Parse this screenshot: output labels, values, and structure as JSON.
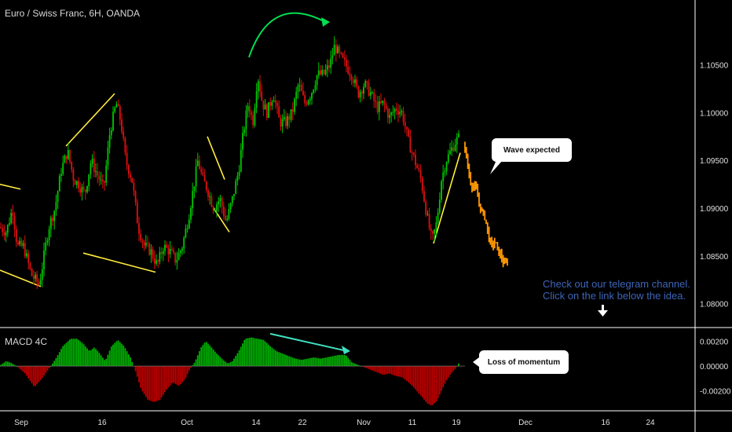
{
  "header": {
    "symbol_title": "Euro / Swiss Franc, 6H, OANDA",
    "indicator_title": "MACD 4C"
  },
  "annotations": {
    "wave_callout": "Wave expected",
    "momentum_callout": "Loss of momentum",
    "promo_line1": "Check out our telegram channel.",
    "promo_line2": "Click on the link below the idea."
  },
  "colors": {
    "background": "#000000",
    "bull": "#00c800",
    "bear": "#e01010",
    "forecast": "#ff9800",
    "trendline": "#ffeb3b",
    "arc": "#00e050",
    "divergence": "#40e0c0",
    "macd_up": "#00b000",
    "macd_down": "#c00000",
    "promo_text": "#3d65b8"
  },
  "chart_data": [
    {
      "type": "candlestick",
      "title": "Euro / Swiss Franc, 6H, OANDA",
      "ylim": [
        1.0775,
        1.1118
      ],
      "y_ticks": [
        "1.10500",
        "1.10000",
        "1.09500",
        "1.09000",
        "1.08500",
        "1.08000"
      ],
      "y_tick_values": [
        1.105,
        1.1,
        1.095,
        1.09,
        1.085,
        1.08
      ],
      "x_ticks": [
        "Sep",
        "16",
        "Oct",
        "14",
        "22",
        "Nov",
        "11",
        "19",
        "Dec",
        "16",
        "24"
      ],
      "price_path": [
        [
          0,
          1.088
        ],
        [
          8,
          1.0875
        ],
        [
          16,
          1.09
        ],
        [
          22,
          1.086
        ],
        [
          30,
          1.086
        ],
        [
          40,
          1.083
        ],
        [
          50,
          1.082
        ],
        [
          56,
          1.085
        ],
        [
          62,
          1.088
        ],
        [
          70,
          1.09
        ],
        [
          78,
          1.094
        ],
        [
          86,
          1.096
        ],
        [
          94,
          1.093
        ],
        [
          100,
          1.0925
        ],
        [
          108,
          1.0915
        ],
        [
          116,
          1.095
        ],
        [
          124,
          1.0935
        ],
        [
          132,
          1.092
        ],
        [
          140,
          1.098
        ],
        [
          148,
          1.101
        ],
        [
          154,
          1.099
        ],
        [
          160,
          1.095
        ],
        [
          168,
          1.093
        ],
        [
          176,
          1.088
        ],
        [
          184,
          1.086
        ],
        [
          192,
          1.0855
        ],
        [
          200,
          1.084
        ],
        [
          208,
          1.086
        ],
        [
          216,
          1.0855
        ],
        [
          224,
          1.0845
        ],
        [
          232,
          1.086
        ],
        [
          240,
          1.089
        ],
        [
          246,
          1.092
        ],
        [
          252,
          1.095
        ],
        [
          258,
          1.093
        ],
        [
          264,
          1.092
        ],
        [
          272,
          1.09
        ],
        [
          280,
          1.091
        ],
        [
          288,
          1.0885
        ],
        [
          296,
          1.091
        ],
        [
          304,
          1.094
        ],
        [
          310,
          1.098
        ],
        [
          316,
          1.101
        ],
        [
          322,
          1.099
        ],
        [
          328,
          1.104
        ],
        [
          334,
          1.101
        ],
        [
          340,
          1.1
        ],
        [
          348,
          1.102
        ],
        [
          356,
          1.099
        ],
        [
          364,
          1.099
        ],
        [
          372,
          1.1
        ],
        [
          380,
          1.103
        ],
        [
          388,
          1.101
        ],
        [
          396,
          1.102
        ],
        [
          404,
          1.104
        ],
        [
          412,
          1.104
        ],
        [
          420,
          1.105
        ],
        [
          426,
          1.107
        ],
        [
          432,
          1.106
        ],
        [
          440,
          1.105
        ],
        [
          448,
          1.104
        ],
        [
          456,
          1.102
        ],
        [
          464,
          1.103
        ],
        [
          472,
          1.102
        ],
        [
          480,
          1.1005
        ],
        [
          488,
          1.101
        ],
        [
          496,
          1.0995
        ],
        [
          504,
          1.1005
        ],
        [
          512,
          1.1
        ],
        [
          520,
          1.097
        ],
        [
          528,
          1.095
        ],
        [
          536,
          1.093
        ],
        [
          544,
          1.089
        ],
        [
          550,
          1.0865
        ],
        [
          556,
          1.0885
        ],
        [
          562,
          1.093
        ],
        [
          568,
          1.095
        ],
        [
          574,
          1.096
        ],
        [
          580,
          1.097
        ],
        [
          586,
          1.0975
        ]
      ],
      "forecast_path": [
        [
          592,
          1.0965
        ],
        [
          596,
          1.094
        ],
        [
          600,
          1.0925
        ],
        [
          606,
          1.092
        ],
        [
          610,
          1.0905
        ],
        [
          614,
          1.0895
        ],
        [
          618,
          1.089
        ],
        [
          622,
          1.087
        ],
        [
          626,
          1.086
        ],
        [
          630,
          1.0865
        ],
        [
          634,
          1.0855
        ],
        [
          638,
          1.085
        ],
        [
          642,
          1.084
        ],
        [
          646,
          1.0845
        ]
      ],
      "trendlines": [
        [
          [
            0,
            1.0925
          ],
          [
            26,
            1.092
          ]
        ],
        [
          [
            0,
            1.0835
          ],
          [
            52,
            1.0818
          ]
        ],
        [
          [
            84,
            1.0965
          ],
          [
            146,
            1.102
          ]
        ],
        [
          [
            106,
            1.0853
          ],
          [
            198,
            1.0833
          ]
        ],
        [
          [
            264,
            1.0975
          ],
          [
            286,
            1.093
          ]
        ],
        [
          [
            272,
            1.09
          ],
          [
            292,
            1.0875
          ]
        ],
        [
          [
            552,
            1.0863
          ],
          [
            586,
            1.0958
          ]
        ]
      ]
    },
    {
      "type": "bar",
      "title": "MACD 4C",
      "ylim": [
        -0.0036,
        0.0031
      ],
      "y_ticks": [
        "0.00200",
        "0.00000",
        "-0.00200"
      ],
      "y_tick_values": [
        0.002,
        0.0,
        -0.002
      ],
      "macd_path": [
        [
          0,
          5e-05
        ],
        [
          8,
          0.0004
        ],
        [
          16,
          0.0002
        ],
        [
          22,
          -5e-05
        ],
        [
          32,
          -0.0006
        ],
        [
          44,
          -0.0017
        ],
        [
          52,
          -0.0011
        ],
        [
          60,
          -0.0004
        ],
        [
          66,
          0.0001
        ],
        [
          72,
          0.0007
        ],
        [
          80,
          0.0016
        ],
        [
          90,
          0.0022
        ],
        [
          98,
          0.0022
        ],
        [
          106,
          0.0018
        ],
        [
          114,
          0.0012
        ],
        [
          120,
          0.0015
        ],
        [
          126,
          0.0011
        ],
        [
          134,
          0.0004
        ],
        [
          142,
          0.0016
        ],
        [
          150,
          0.0021
        ],
        [
          158,
          0.0016
        ],
        [
          166,
          0.0007
        ],
        [
          172,
          -0.0003
        ],
        [
          180,
          -0.0019
        ],
        [
          188,
          -0.0027
        ],
        [
          196,
          -0.0029
        ],
        [
          204,
          -0.0027
        ],
        [
          212,
          -0.0019
        ],
        [
          220,
          -0.0013
        ],
        [
          228,
          -0.0016
        ],
        [
          236,
          -0.001
        ],
        [
          242,
          -0.0002
        ],
        [
          248,
          0.0003
        ],
        [
          256,
          0.0015
        ],
        [
          262,
          0.002
        ],
        [
          268,
          0.0016
        ],
        [
          276,
          0.001
        ],
        [
          284,
          0.0005
        ],
        [
          290,
          0.0002
        ],
        [
          296,
          0.0004
        ],
        [
          304,
          0.0012
        ],
        [
          312,
          0.0022
        ],
        [
          320,
          0.0023
        ],
        [
          328,
          0.0022
        ],
        [
          336,
          0.0021
        ],
        [
          344,
          0.0016
        ],
        [
          352,
          0.0012
        ],
        [
          360,
          0.001
        ],
        [
          368,
          0.0008
        ],
        [
          376,
          0.0006
        ],
        [
          384,
          0.0005
        ],
        [
          392,
          0.0006
        ],
        [
          400,
          0.0007
        ],
        [
          408,
          0.0006
        ],
        [
          416,
          0.0007
        ],
        [
          424,
          0.0008
        ],
        [
          432,
          0.0009
        ],
        [
          440,
          0.0009
        ],
        [
          448,
          0.0003
        ],
        [
          456,
          0.0001
        ],
        [
          464,
          -0.0001
        ],
        [
          472,
          -0.0003
        ],
        [
          480,
          -0.0005
        ],
        [
          488,
          -0.0007
        ],
        [
          496,
          -0.0006
        ],
        [
          504,
          -0.0008
        ],
        [
          512,
          -0.0009
        ],
        [
          520,
          -0.0013
        ],
        [
          528,
          -0.0018
        ],
        [
          536,
          -0.0024
        ],
        [
          544,
          -0.003
        ],
        [
          550,
          -0.0032
        ],
        [
          556,
          -0.0028
        ],
        [
          562,
          -0.002
        ],
        [
          568,
          -0.0012
        ],
        [
          574,
          -0.0006
        ],
        [
          580,
          -0.0002
        ],
        [
          586,
          0.0004
        ]
      ],
      "divergence_line": [
        [
          344,
          0.0026
        ],
        [
          444,
          0.0012
        ]
      ]
    }
  ]
}
